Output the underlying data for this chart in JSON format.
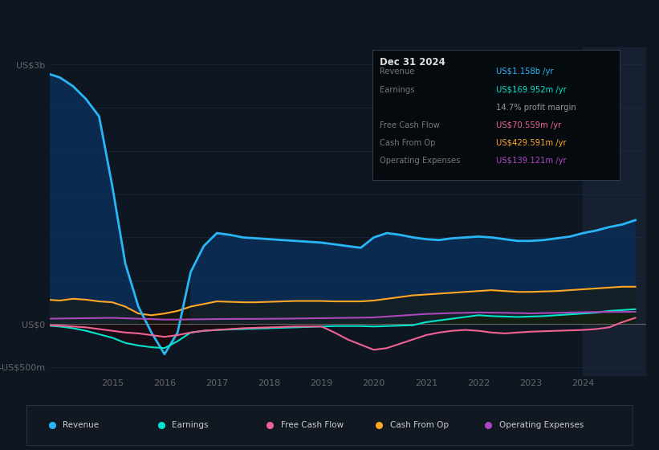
{
  "bg_color": "#0e1621",
  "chart_bg": "#0e1621",
  "grid_color": "#1e3050",
  "zero_line_color": "#aaaaaa",
  "years": [
    2013.75,
    2014.0,
    2014.25,
    2014.5,
    2014.75,
    2015.0,
    2015.25,
    2015.5,
    2015.75,
    2016.0,
    2016.25,
    2016.5,
    2016.75,
    2017.0,
    2017.25,
    2017.5,
    2017.75,
    2018.0,
    2018.25,
    2018.5,
    2018.75,
    2019.0,
    2019.25,
    2019.5,
    2019.75,
    2020.0,
    2020.25,
    2020.5,
    2020.75,
    2021.0,
    2021.25,
    2021.5,
    2021.75,
    2022.0,
    2022.25,
    2022.5,
    2022.75,
    2023.0,
    2023.25,
    2023.5,
    2023.75,
    2024.0,
    2024.25,
    2024.5,
    2024.75,
    2025.0
  ],
  "revenue": [
    2900,
    2850,
    2750,
    2600,
    2400,
    1600,
    700,
    200,
    -100,
    -350,
    -100,
    600,
    900,
    1050,
    1030,
    1000,
    990,
    980,
    970,
    960,
    950,
    940,
    920,
    900,
    880,
    1000,
    1050,
    1030,
    1000,
    980,
    970,
    990,
    1000,
    1010,
    1000,
    980,
    960,
    960,
    970,
    990,
    1010,
    1050,
    1080,
    1120,
    1150,
    1200
  ],
  "earnings": [
    -20,
    -30,
    -50,
    -80,
    -120,
    -160,
    -220,
    -250,
    -270,
    -280,
    -200,
    -100,
    -80,
    -70,
    -65,
    -60,
    -55,
    -50,
    -45,
    -40,
    -35,
    -30,
    -25,
    -25,
    -25,
    -30,
    -25,
    -20,
    -15,
    20,
    40,
    60,
    80,
    100,
    90,
    85,
    80,
    85,
    90,
    100,
    110,
    120,
    130,
    150,
    160,
    170
  ],
  "free_cash_flow": [
    -15,
    -20,
    -30,
    -40,
    -60,
    -80,
    -100,
    -110,
    -130,
    -150,
    -130,
    -100,
    -80,
    -70,
    -60,
    -50,
    -45,
    -40,
    -35,
    -30,
    -30,
    -30,
    -100,
    -180,
    -240,
    -300,
    -280,
    -230,
    -180,
    -130,
    -100,
    -80,
    -70,
    -80,
    -100,
    -110,
    -100,
    -90,
    -85,
    -80,
    -75,
    -70,
    -60,
    -40,
    20,
    70
  ],
  "cash_from_op": [
    280,
    270,
    290,
    280,
    260,
    250,
    200,
    120,
    100,
    120,
    150,
    200,
    230,
    260,
    255,
    250,
    250,
    255,
    260,
    265,
    265,
    265,
    260,
    260,
    260,
    270,
    290,
    310,
    330,
    340,
    350,
    360,
    370,
    380,
    390,
    380,
    370,
    370,
    375,
    380,
    390,
    400,
    410,
    420,
    430,
    430
  ],
  "operating_expenses": [
    60,
    62,
    64,
    66,
    68,
    70,
    65,
    60,
    55,
    50,
    50,
    52,
    54,
    56,
    57,
    58,
    58,
    59,
    60,
    62,
    64,
    66,
    68,
    70,
    72,
    75,
    85,
    95,
    105,
    115,
    120,
    125,
    128,
    132,
    130,
    128,
    125,
    122,
    125,
    128,
    132,
    135,
    137,
    138,
    139,
    140
  ],
  "revenue_color": "#29b6f6",
  "earnings_color": "#00e5cc",
  "fcf_color": "#f06292",
  "cashop_color": "#ffa726",
  "opex_color": "#ab47bc",
  "revenue_fill": "#0a2a50",
  "revenue_fill_neg": "#1a0a0a",
  "ylim_min": -600,
  "ylim_max": 3200,
  "ytick_positions": [
    -500,
    0,
    3000
  ],
  "ytick_labels": [
    "-US$500m",
    "US$0",
    "US$3b"
  ],
  "xlim_min": 2013.8,
  "xlim_max": 2025.2,
  "xticks": [
    2015,
    2016,
    2017,
    2018,
    2019,
    2020,
    2021,
    2022,
    2023,
    2024
  ],
  "xtick_labels": [
    "2015",
    "2016",
    "2017",
    "2018",
    "2019",
    "2020",
    "2021",
    "2022",
    "2023",
    "2024"
  ],
  "grid_yticks": [
    -500,
    0,
    500,
    1000,
    1500,
    2000,
    2500,
    3000
  ],
  "highlight_start": 2024.0,
  "highlight_end": 2025.2,
  "highlight_color": "#162030",
  "info_box": {
    "title": "Dec 31 2024",
    "rows": [
      {
        "label": "Revenue",
        "value": "US$1.158b /yr",
        "value_color": "#29b6f6"
      },
      {
        "label": "Earnings",
        "value": "US$169.952m /yr",
        "value_color": "#00e5cc"
      },
      {
        "label": "",
        "value": "14.7% profit margin",
        "value_color": "#999999"
      },
      {
        "label": "Free Cash Flow",
        "value": "US$70.559m /yr",
        "value_color": "#f06292"
      },
      {
        "label": "Cash From Op",
        "value": "US$429.591m /yr",
        "value_color": "#ffa726"
      },
      {
        "label": "Operating Expenses",
        "value": "US$139.121m /yr",
        "value_color": "#ab47bc"
      }
    ]
  },
  "legend_items": [
    {
      "label": "Revenue",
      "color": "#29b6f6"
    },
    {
      "label": "Earnings",
      "color": "#00e5cc"
    },
    {
      "label": "Free Cash Flow",
      "color": "#f06292"
    },
    {
      "label": "Cash From Op",
      "color": "#ffa726"
    },
    {
      "label": "Operating Expenses",
      "color": "#ab47bc"
    }
  ],
  "text_color": "#cccccc",
  "tick_color": "#666666",
  "legend_bg": "#111822",
  "legend_border": "#2a3a4a"
}
